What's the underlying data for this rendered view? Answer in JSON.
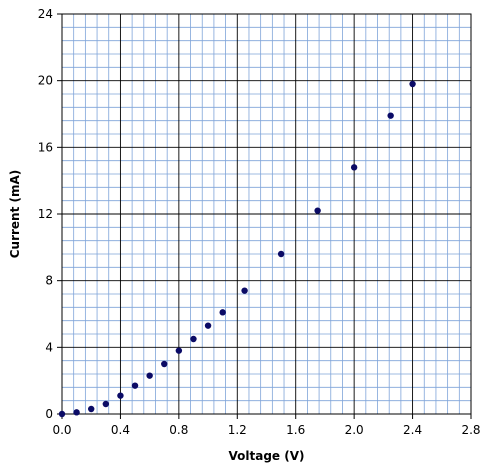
{
  "chart_data": {
    "type": "scatter",
    "title": "",
    "xlabel": "Voltage (V)",
    "ylabel": "Current (mA)",
    "xlim": [
      0,
      2.8
    ],
    "ylim": [
      0,
      24
    ],
    "x_ticks": [
      "0.0",
      "0.4",
      "0.8",
      "1.2",
      "1.6",
      "2.0",
      "2.4",
      "2.8"
    ],
    "y_ticks": [
      "0",
      "4",
      "8",
      "12",
      "16",
      "20",
      "24"
    ],
    "grid": true,
    "legend": "none",
    "colors": {
      "minor_grid": "#7fa4d9",
      "major_grid": "#000000",
      "marker": "#0b0b66"
    },
    "series": [
      {
        "x": [
          0.0,
          0.1,
          0.2,
          0.3,
          0.4,
          0.5,
          0.6,
          0.7,
          0.8,
          0.9,
          1.0,
          1.1,
          1.25,
          1.5,
          1.75,
          2.0,
          2.25,
          2.4
        ],
        "y": [
          0.0,
          0.1,
          0.3,
          0.6,
          1.1,
          1.7,
          2.3,
          3.0,
          3.8,
          4.5,
          5.3,
          6.1,
          7.4,
          9.6,
          12.2,
          14.8,
          17.9,
          19.8
        ]
      }
    ]
  }
}
